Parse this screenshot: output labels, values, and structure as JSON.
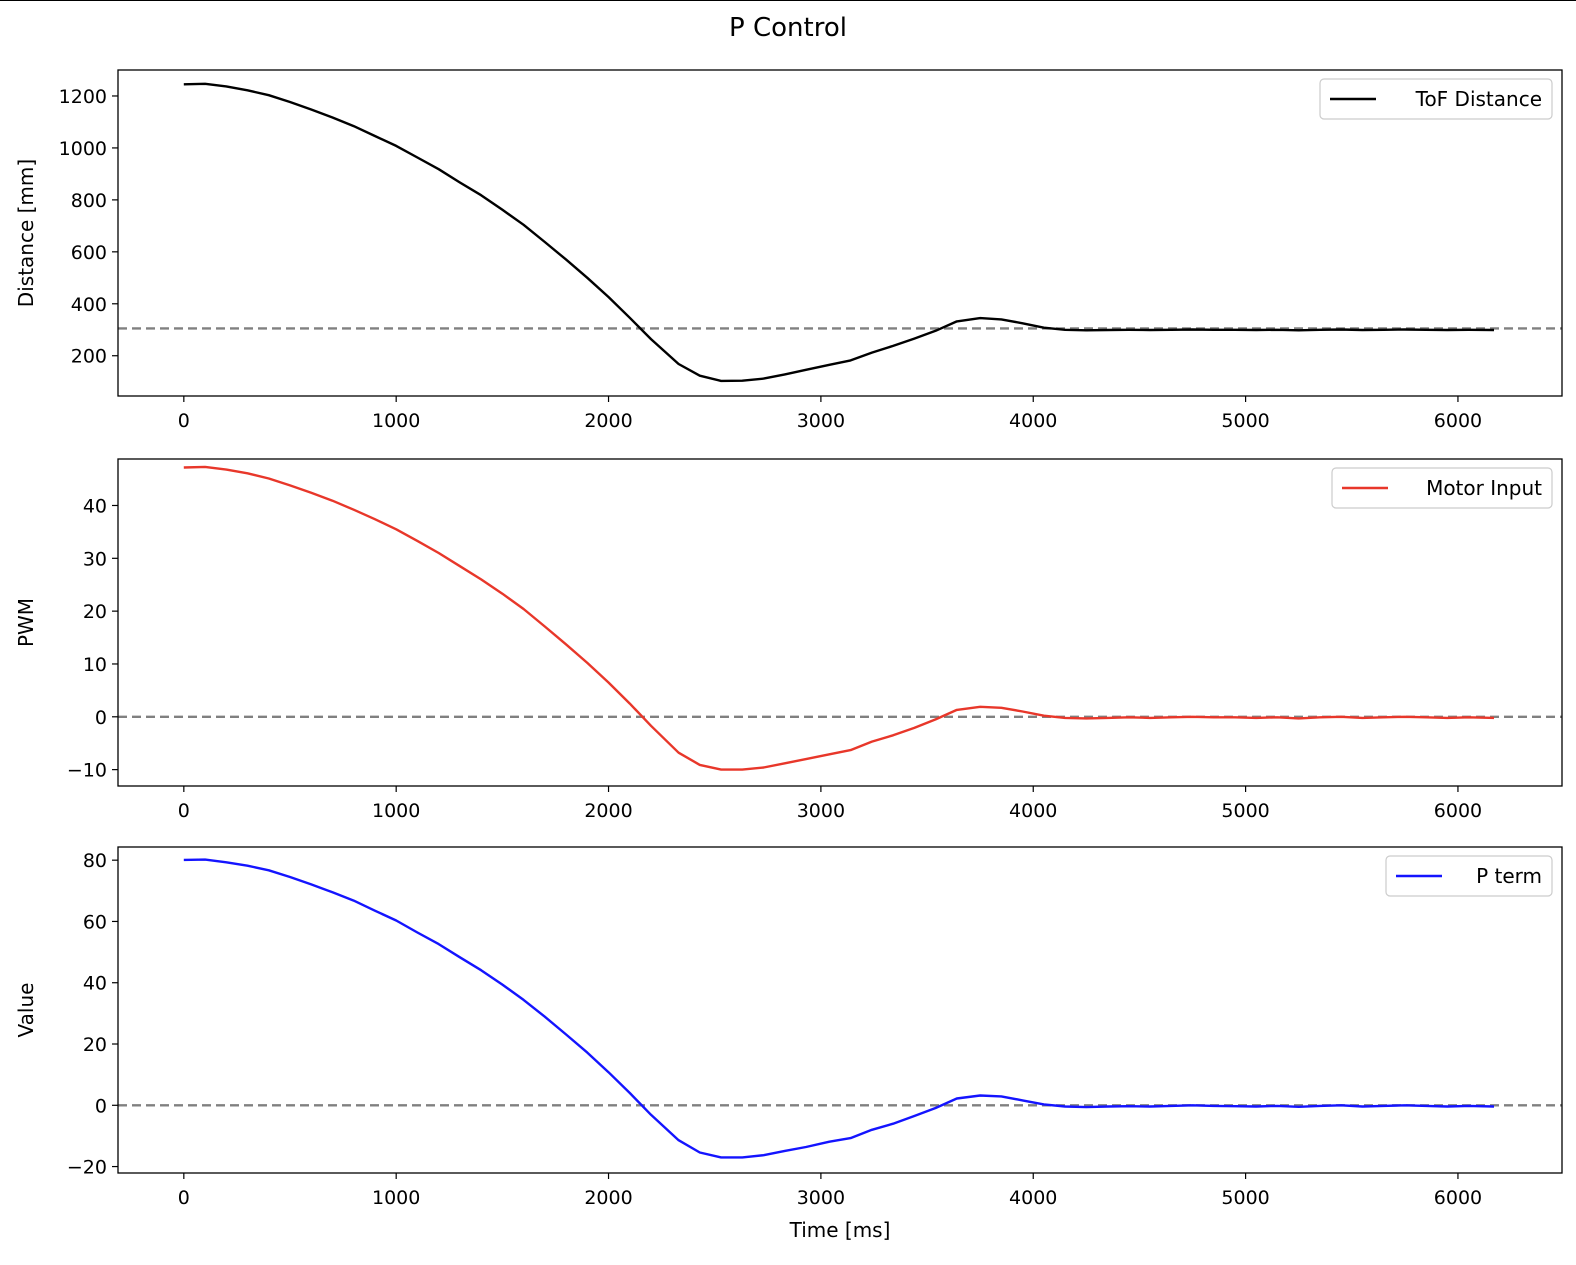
{
  "figure": {
    "title": "P Control"
  },
  "chart_data": [
    {
      "type": "line",
      "ylabel": "Distance [mm]",
      "xlabel": "",
      "xlim": [
        -310,
        6490
      ],
      "ylim": [
        45,
        1300
      ],
      "xticks": [
        0,
        1000,
        2000,
        3000,
        4000,
        5000,
        6000
      ],
      "yticks": [
        200,
        400,
        600,
        800,
        1000,
        1200
      ],
      "ytick_labels": [
        "200",
        "400",
        "600",
        "800",
        "1000",
        "1200"
      ],
      "reference_line": {
        "y": 305,
        "style": "dashed",
        "color": "#808080"
      },
      "legend_location": "top-right",
      "series": [
        {
          "name": "ToF Distance",
          "color": "#000000",
          "x": [
            0,
            100,
            200,
            300,
            400,
            500,
            600,
            700,
            800,
            900,
            1000,
            1100,
            1200,
            1300,
            1400,
            1500,
            1600,
            1700,
            1800,
            1900,
            2000,
            2100,
            2200,
            2330,
            2430,
            2530,
            2630,
            2730,
            2830,
            2930,
            3040,
            3140,
            3240,
            3340,
            3440,
            3540,
            3640,
            3750,
            3850,
            3950,
            4050,
            4150,
            4250,
            4350,
            4450,
            4550,
            4650,
            4750,
            4850,
            4950,
            5050,
            5150,
            5250,
            5350,
            5450,
            5550,
            5650,
            5750,
            5850,
            5950,
            6050,
            6170
          ],
          "values": [
            1245,
            1247,
            1237,
            1222,
            1203,
            1177,
            1148,
            1117,
            1084,
            1046,
            1008,
            963,
            918,
            867,
            818,
            762,
            704,
            638,
            570,
            500,
            426,
            346,
            264,
            168,
            123,
            103,
            104,
            112,
            128,
            146,
            165,
            182,
            212,
            238,
            266,
            296,
            332,
            345,
            340,
            325,
            308,
            300,
            298,
            299,
            300,
            299,
            300,
            301,
            300,
            300,
            299,
            300,
            298,
            300,
            301,
            299,
            300,
            301,
            300,
            299,
            300,
            299
          ]
        }
      ]
    },
    {
      "type": "line",
      "ylabel": "PWM",
      "xlabel": "",
      "xlim": [
        -310,
        6490
      ],
      "ylim": [
        -13.1,
        48.8
      ],
      "xticks": [
        0,
        1000,
        2000,
        3000,
        4000,
        5000,
        6000
      ],
      "yticks": [
        -10,
        0,
        10,
        20,
        30,
        40
      ],
      "ytick_labels": [
        "−10",
        "0",
        "10",
        "20",
        "30",
        "40"
      ],
      "reference_line": {
        "y": 0,
        "style": "dashed",
        "color": "#808080"
      },
      "legend_location": "top-right",
      "series": [
        {
          "name": "Motor Input",
          "color": "#e8372a",
          "x": [
            0,
            100,
            200,
            300,
            400,
            500,
            600,
            700,
            800,
            900,
            1000,
            1100,
            1200,
            1300,
            1400,
            1500,
            1600,
            1700,
            1800,
            1900,
            2000,
            2100,
            2200,
            2330,
            2430,
            2530,
            2630,
            2730,
            2830,
            2930,
            3040,
            3140,
            3240,
            3340,
            3440,
            3540,
            3640,
            3750,
            3850,
            3950,
            4050,
            4150,
            4250,
            4350,
            4450,
            4550,
            4650,
            4750,
            4850,
            4950,
            5050,
            5150,
            5250,
            5350,
            5450,
            5550,
            5650,
            5750,
            5850,
            5950,
            6050,
            6170
          ],
          "values": [
            47.2,
            47.3,
            46.8,
            46.1,
            45.1,
            43.8,
            42.4,
            40.9,
            39.2,
            37.4,
            35.5,
            33.3,
            31.0,
            28.5,
            26.0,
            23.3,
            20.4,
            17.1,
            13.7,
            10.2,
            6.5,
            2.5,
            -1.7,
            -6.8,
            -9.1,
            -10.0,
            -10.0,
            -9.6,
            -8.8,
            -8.0,
            -7.1,
            -6.3,
            -4.7,
            -3.5,
            -2.1,
            -0.5,
            1.3,
            1.9,
            1.7,
            1.0,
            0.2,
            -0.2,
            -0.3,
            -0.2,
            -0.1,
            -0.2,
            -0.1,
            0.0,
            -0.1,
            -0.1,
            -0.2,
            -0.1,
            -0.3,
            -0.1,
            0.0,
            -0.2,
            -0.1,
            0.0,
            -0.1,
            -0.2,
            -0.1,
            -0.2
          ]
        }
      ]
    },
    {
      "type": "line",
      "ylabel": "Value",
      "xlabel": "Time [ms]",
      "xlim": [
        -310,
        6490
      ],
      "ylim": [
        -22.1,
        84.3
      ],
      "xticks": [
        0,
        1000,
        2000,
        3000,
        4000,
        5000,
        6000
      ],
      "yticks": [
        -20,
        0,
        20,
        40,
        60,
        80
      ],
      "ytick_labels": [
        "−20",
        "0",
        "20",
        "40",
        "60",
        "80"
      ],
      "reference_line": {
        "y": 0,
        "style": "dashed",
        "color": "#808080"
      },
      "legend_location": "top-right",
      "series": [
        {
          "name": "P term",
          "color": "#1414ff",
          "x": [
            0,
            100,
            200,
            300,
            400,
            500,
            600,
            700,
            800,
            900,
            1000,
            1100,
            1200,
            1300,
            1400,
            1500,
            1600,
            1700,
            1800,
            1900,
            2000,
            2100,
            2200,
            2330,
            2430,
            2530,
            2630,
            2730,
            2830,
            2930,
            3040,
            3140,
            3240,
            3340,
            3440,
            3540,
            3640,
            3750,
            3850,
            3950,
            4050,
            4150,
            4250,
            4350,
            4450,
            4550,
            4650,
            4750,
            4850,
            4950,
            5050,
            5150,
            5250,
            5350,
            5450,
            5550,
            5650,
            5750,
            5850,
            5950,
            6050,
            6170
          ],
          "values": [
            80.1,
            80.2,
            79.3,
            78.2,
            76.7,
            74.5,
            72.1,
            69.5,
            66.8,
            63.5,
            60.3,
            56.4,
            52.6,
            48.3,
            44.1,
            39.4,
            34.4,
            28.9,
            23.1,
            17.2,
            10.8,
            4.0,
            -3.1,
            -11.4,
            -15.4,
            -17.0,
            -17.0,
            -16.3,
            -14.9,
            -13.6,
            -11.9,
            -10.7,
            -8.0,
            -6.0,
            -3.5,
            -0.9,
            2.2,
            3.2,
            2.9,
            1.6,
            0.3,
            -0.4,
            -0.6,
            -0.4,
            -0.3,
            -0.4,
            -0.2,
            0.0,
            -0.2,
            -0.3,
            -0.4,
            -0.2,
            -0.5,
            -0.2,
            0.0,
            -0.4,
            -0.2,
            0.0,
            -0.2,
            -0.4,
            -0.2,
            -0.4
          ]
        }
      ]
    }
  ]
}
